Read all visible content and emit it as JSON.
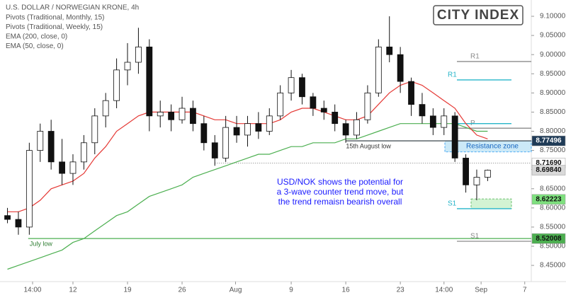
{
  "chart_data": {
    "type": "candlestick",
    "title": "U.S. DOLLAR / NORWEGIAN KRONE, 4h",
    "indicators": [
      "Pivots (Traditional, Monthly, 15)",
      "Pivots (Traditional, Weekly, 15)"
    ],
    "logo": "CITY INDEX",
    "open": [
      8.58,
      8.57,
      8.55,
      8.75,
      8.8,
      8.72,
      8.69,
      8.72,
      8.77,
      8.84,
      8.88,
      8.96,
      8.98,
      9.02,
      8.84,
      8.85,
      8.83,
      8.86,
      8.82,
      8.77,
      8.73,
      8.81,
      8.79,
      8.82,
      8.8,
      8.84,
      8.9,
      8.94,
      8.89,
      8.86,
      8.85,
      8.82,
      8.79,
      8.83,
      8.9,
      9.02,
      9.0,
      8.93,
      8.87,
      8.84,
      8.81,
      8.84,
      8.73,
      8.66,
      8.68
    ],
    "high": [
      8.6,
      8.59,
      8.77,
      8.82,
      8.83,
      8.78,
      8.74,
      8.79,
      8.86,
      8.9,
      8.99,
      9.03,
      9.07,
      9.04,
      8.88,
      8.87,
      8.89,
      8.88,
      8.84,
      8.79,
      8.84,
      8.84,
      8.84,
      8.85,
      8.86,
      8.92,
      8.96,
      8.95,
      8.9,
      8.88,
      8.87,
      8.83,
      8.85,
      8.92,
      9.04,
      9.1,
      9.02,
      8.94,
      8.9,
      8.86,
      8.86,
      8.85,
      8.74,
      8.7,
      8.7
    ],
    "low": [
      8.56,
      8.53,
      8.53,
      8.72,
      8.7,
      8.66,
      8.66,
      8.7,
      8.74,
      8.81,
      8.86,
      8.92,
      8.95,
      8.8,
      8.81,
      8.8,
      8.82,
      8.8,
      8.75,
      8.71,
      8.72,
      8.77,
      8.76,
      8.78,
      8.79,
      8.83,
      8.88,
      8.87,
      8.84,
      8.83,
      8.8,
      8.77,
      8.78,
      8.82,
      8.89,
      8.98,
      8.9,
      8.84,
      8.82,
      8.79,
      8.79,
      8.72,
      8.64,
      8.62,
      8.67
    ],
    "close": [
      8.57,
      8.55,
      8.75,
      8.8,
      8.72,
      8.69,
      8.72,
      8.77,
      8.84,
      8.88,
      8.96,
      8.98,
      9.02,
      8.84,
      8.85,
      8.83,
      8.86,
      8.82,
      8.77,
      8.73,
      8.81,
      8.79,
      8.82,
      8.8,
      8.84,
      8.9,
      8.94,
      8.89,
      8.86,
      8.85,
      8.82,
      8.79,
      8.83,
      8.9,
      9.02,
      9.0,
      8.93,
      8.87,
      8.84,
      8.81,
      8.84,
      8.73,
      8.66,
      8.68,
      8.6984
    ],
    "series": [
      {
        "name": "EMA (200, close, 0)",
        "color": "#4caf50",
        "values": [
          8.44,
          8.45,
          8.46,
          8.47,
          8.48,
          8.49,
          8.51,
          8.52,
          8.54,
          8.56,
          8.58,
          8.59,
          8.61,
          8.63,
          8.64,
          8.65,
          8.66,
          8.68,
          8.69,
          8.7,
          8.71,
          8.72,
          8.73,
          8.74,
          8.74,
          8.75,
          8.76,
          8.76,
          8.77,
          8.77,
          8.77,
          8.78,
          8.78,
          8.79,
          8.8,
          8.81,
          8.82,
          8.82,
          8.82,
          8.82,
          8.82,
          8.82,
          8.81,
          8.8,
          8.8
        ]
      },
      {
        "name": "EMA (50, close, 0)",
        "color": "#e53935",
        "values": [
          8.59,
          8.59,
          8.6,
          8.62,
          8.65,
          8.66,
          8.67,
          8.69,
          8.73,
          8.76,
          8.8,
          8.82,
          8.84,
          8.85,
          8.85,
          8.85,
          8.85,
          8.85,
          8.84,
          8.83,
          8.83,
          8.82,
          8.82,
          8.82,
          8.82,
          8.83,
          8.85,
          8.86,
          8.86,
          8.85,
          8.84,
          8.83,
          8.83,
          8.84,
          8.87,
          8.9,
          8.92,
          8.93,
          8.92,
          8.9,
          8.88,
          8.86,
          8.82,
          8.79,
          8.78
        ]
      }
    ],
    "monthly_pivots": [
      {
        "label": "R1",
        "value": 8.982
      },
      {
        "label": "P",
        "value": 8.808
      },
      {
        "label": "S1",
        "value": 8.513
      }
    ],
    "weekly_pivots": [
      {
        "label": "R1",
        "value": 8.934
      },
      {
        "label": null,
        "value": 8.82
      },
      {
        "label": "S1",
        "value": 8.598
      }
    ],
    "levels": [
      {
        "label": "July low",
        "value": 8.52008,
        "color": "#4caf50"
      },
      {
        "label": "15th August low",
        "value": 8.77496,
        "color": "#263238"
      },
      {
        "label": null,
        "value": 8.7169,
        "color": "#555555"
      }
    ],
    "zones": [
      {
        "label": "Resistance zone",
        "from": 8.746,
        "to": 8.775,
        "color": "#bfe3f5"
      },
      {
        "label": null,
        "from": 8.598,
        "to": 8.6235,
        "color": "#c8f0c8"
      }
    ],
    "price_tags": [
      {
        "value": 8.77496,
        "label": "8.77496",
        "color": "#1f3b57"
      },
      {
        "value": 8.7169,
        "label": "8.71690",
        "color": "#ffffff"
      },
      {
        "value": 8.6984,
        "label": "8.69840",
        "color": "#d9d9d9"
      },
      {
        "value": 8.62223,
        "label": "8.62223",
        "color": "#7ee07e"
      },
      {
        "value": 8.52008,
        "label": "8.52008",
        "color": "#4caf50"
      }
    ],
    "annotation": [
      "USD/NOK shows the potential for",
      "a 3-wave counter trend move, but",
      "the trend remaisn bearish overall"
    ],
    "xlim": [
      -0.36,
      48
    ],
    "xticks": [
      {
        "value": 2.3,
        "label": "14:00"
      },
      {
        "value": 6,
        "label": "12"
      },
      {
        "value": 11,
        "label": "19"
      },
      {
        "value": 16,
        "label": "26"
      },
      {
        "value": 20.9,
        "label": "Aug"
      },
      {
        "value": 26,
        "label": "9"
      },
      {
        "value": 31,
        "label": "16"
      },
      {
        "value": 36,
        "label": "23"
      },
      {
        "value": 40,
        "label": "14:00"
      },
      {
        "value": 43.4,
        "label": "Sep"
      },
      {
        "value": 47.4,
        "label": "7"
      }
    ],
    "ylim": [
      8.4077,
      9.1425
    ],
    "yticks": [
      {
        "value": 8.45,
        "label": "8.45000"
      },
      {
        "value": 8.5,
        "label": "8.50000"
      },
      {
        "value": 8.55,
        "label": "8.55000"
      },
      {
        "value": 8.6,
        "label": "8.60000"
      },
      {
        "value": 8.65,
        "label": "8.65000"
      },
      {
        "value": 8.7,
        "label": "8.70000"
      },
      {
        "value": 8.75,
        "label": "8.75000"
      },
      {
        "value": 8.8,
        "label": "8.80000"
      },
      {
        "value": 8.85,
        "label": "8.85000"
      },
      {
        "value": 8.9,
        "label": "8.90000"
      },
      {
        "value": 8.95,
        "label": "8.95000"
      },
      {
        "value": 9.0,
        "label": "9.00000"
      },
      {
        "value": 9.05,
        "label": "9.05000"
      },
      {
        "value": 9.1,
        "label": "9.10000"
      }
    ]
  }
}
